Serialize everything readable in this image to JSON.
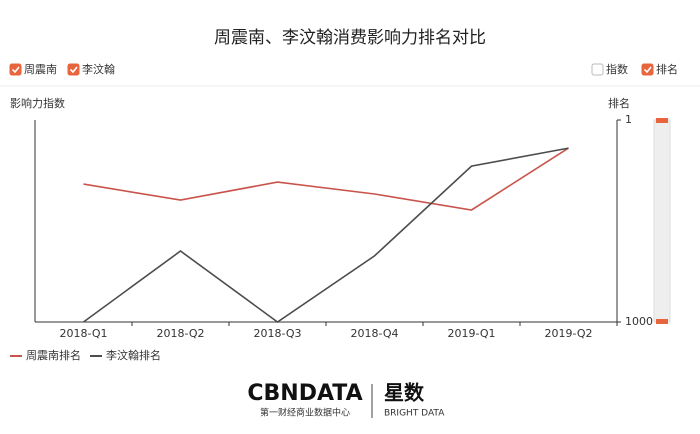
{
  "chart_data": {
    "type": "line",
    "title": "周震南、李汶翰消费影响力排名对比",
    "filters": [
      {
        "label": "周震南",
        "checked": true
      },
      {
        "label": "李汶翰",
        "checked": true
      },
      {
        "label": "指数",
        "checked": false
      },
      {
        "label": "排名",
        "checked": true
      }
    ],
    "ylabel": "影响力指数",
    "y2label": "排名",
    "categories": [
      "2018-Q1",
      "2018-Q2",
      "2018-Q3",
      "2018-Q4",
      "2019-Q1",
      "2019-Q2"
    ],
    "y2lim": [
      1000,
      1
    ],
    "y2ticks": [
      1,
      1000
    ],
    "series": [
      {
        "name": "周震南排名",
        "color": "#c9544b",
        "axis": "y2",
        "values": [
          318,
          397,
          308,
          367,
          446,
          140
        ]
      },
      {
        "name": "李汶翰排名",
        "color": "#4a4e4d",
        "axis": "y2",
        "values": [
          1000,
          649,
          1000,
          673,
          229,
          140
        ]
      }
    ],
    "footer": {
      "brand": "CBNDATA",
      "brand_sub": "第一财经商业数据中心",
      "product": "星数",
      "product_sub": "BRIGHT DATA"
    }
  }
}
